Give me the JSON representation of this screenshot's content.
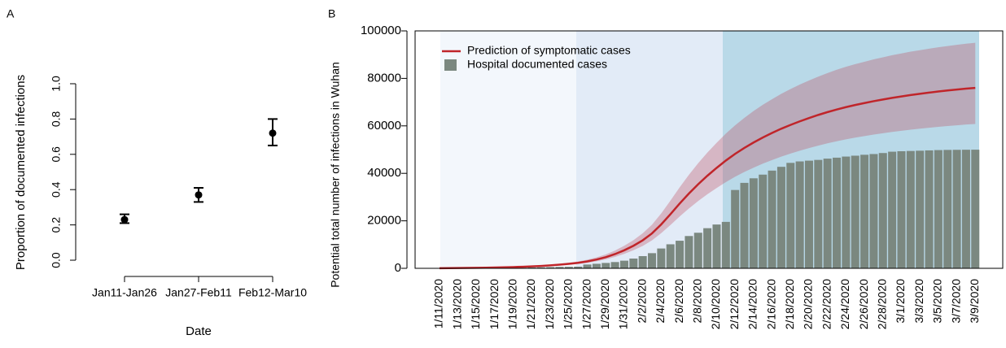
{
  "chart_data": [
    {
      "type": "errorpoint",
      "panel_label": "A",
      "xlabel": "Date",
      "ylabel": "Proportion of documented infections",
      "categories": [
        "Jan11-Jan26",
        "Jan27-Feb11",
        "Feb12-Mar10"
      ],
      "values": [
        0.23,
        0.37,
        0.72
      ],
      "lower": [
        0.21,
        0.33,
        0.65
      ],
      "upper": [
        0.26,
        0.41,
        0.8
      ],
      "color": "#000000",
      "ylim": [
        -0.04,
        1.04
      ],
      "yticks": [
        {
          "value": 0,
          "label": "0.0"
        },
        0.2,
        0.4,
        0.6,
        0.8,
        {
          "value": 1,
          "label": "1.0"
        }
      ]
    },
    {
      "type": "bar_line",
      "panel_label": "B",
      "ylabel": "Potential total number of infections in Wuhan",
      "categories": [
        "1/11/2020",
        null,
        "1/13/2020",
        null,
        "1/15/2020",
        null,
        "1/17/2020",
        null,
        "1/19/2020",
        null,
        "1/21/2020",
        null,
        "1/23/2020",
        null,
        "1/25/2020",
        null,
        "1/27/2020",
        null,
        "1/29/2020",
        null,
        "1/31/2020",
        null,
        "2/2/2020",
        null,
        "2/4/2020",
        null,
        "2/6/2020",
        null,
        "2/8/2020",
        null,
        "2/10/2020",
        null,
        "2/12/2020",
        null,
        "2/14/2020",
        null,
        "2/16/2020",
        null,
        "2/18/2020",
        null,
        "2/20/2020",
        null,
        "2/22/2020",
        null,
        "2/24/2020",
        null,
        "2/26/2020",
        null,
        "2/28/2020",
        null,
        "3/1/2020",
        null,
        "3/3/2020",
        null,
        "3/5/2020",
        null,
        "3/7/2020",
        null,
        "3/9/2020"
      ],
      "series": [
        {
          "name": "Prediction of symptomatic cases",
          "type": "line",
          "color": "#c0252a",
          "band_color": "rgba(190,70,90,0.32)",
          "values": [
            50,
            80,
            110,
            150,
            200,
            260,
            330,
            420,
            530,
            660,
            820,
            1000,
            1250,
            1550,
            1900,
            2300,
            2900,
            3700,
            4700,
            6000,
            7600,
            9500,
            11800,
            14700,
            18500,
            22800,
            27300,
            31500,
            35400,
            39000,
            42300,
            45400,
            48200,
            50700,
            53000,
            55100,
            57000,
            58800,
            60400,
            61900,
            63300,
            64600,
            65800,
            66900,
            67900,
            68800,
            69600,
            70400,
            71100,
            71800,
            72400,
            73000,
            73500,
            74000,
            74500,
            74900,
            75300,
            75700,
            76000
          ],
          "upper": [
            63,
            100,
            138,
            188,
            250,
            325,
            413,
            525,
            663,
            825,
            1025,
            1250,
            1563,
            1938,
            2375,
            2875,
            3625,
            4625,
            5875,
            7500,
            9500,
            11875,
            14750,
            18375,
            23125,
            28500,
            34125,
            39375,
            44250,
            48750,
            52875,
            56750,
            60250,
            63375,
            66250,
            68875,
            71250,
            73500,
            75500,
            77375,
            79125,
            80750,
            82250,
            83625,
            84875,
            86000,
            87000,
            88000,
            88875,
            89750,
            90500,
            91250,
            91875,
            92500,
            93125,
            93625,
            94125,
            94625,
            95000
          ],
          "lower": [
            40,
            64,
            88,
            120,
            160,
            208,
            264,
            336,
            424,
            528,
            656,
            800,
            1000,
            1240,
            1520,
            1840,
            2320,
            2960,
            3760,
            4800,
            6080,
            7600,
            9440,
            11760,
            14800,
            18240,
            21840,
            25200,
            28320,
            31200,
            33840,
            36320,
            38560,
            40560,
            42400,
            44080,
            45600,
            47040,
            48320,
            49520,
            50640,
            51680,
            52640,
            53520,
            54320,
            55040,
            55680,
            56320,
            56880,
            57440,
            57920,
            58400,
            58800,
            59200,
            59600,
            59920,
            60240,
            60560,
            60800
          ]
        },
        {
          "name": "Hospital documented cases",
          "type": "bar",
          "color": "#7b8880",
          "values": [
            41,
            41,
            41,
            41,
            41,
            45,
            62,
            121,
            198,
            258,
            363,
            425,
            495,
            572,
            618,
            698,
            1590,
            1905,
            2261,
            2639,
            3215,
            4109,
            5142,
            6384,
            8351,
            10117,
            11618,
            13603,
            14982,
            16902,
            18454,
            19558,
            32994,
            35991,
            37914,
            39462,
            41152,
            42752,
            44412,
            45027,
            45346,
            45660,
            46201,
            46607,
            47071,
            47441,
            47824,
            48137,
            48557,
            49122,
            49315,
            49426,
            49540,
            49671,
            49797,
            49871,
            49912,
            49948,
            49965
          ]
        }
      ],
      "ylim": [
        0,
        100000
      ],
      "yticks": [
        0,
        20000,
        40000,
        60000,
        80000,
        100000
      ],
      "legend": "top-left"
    }
  ]
}
